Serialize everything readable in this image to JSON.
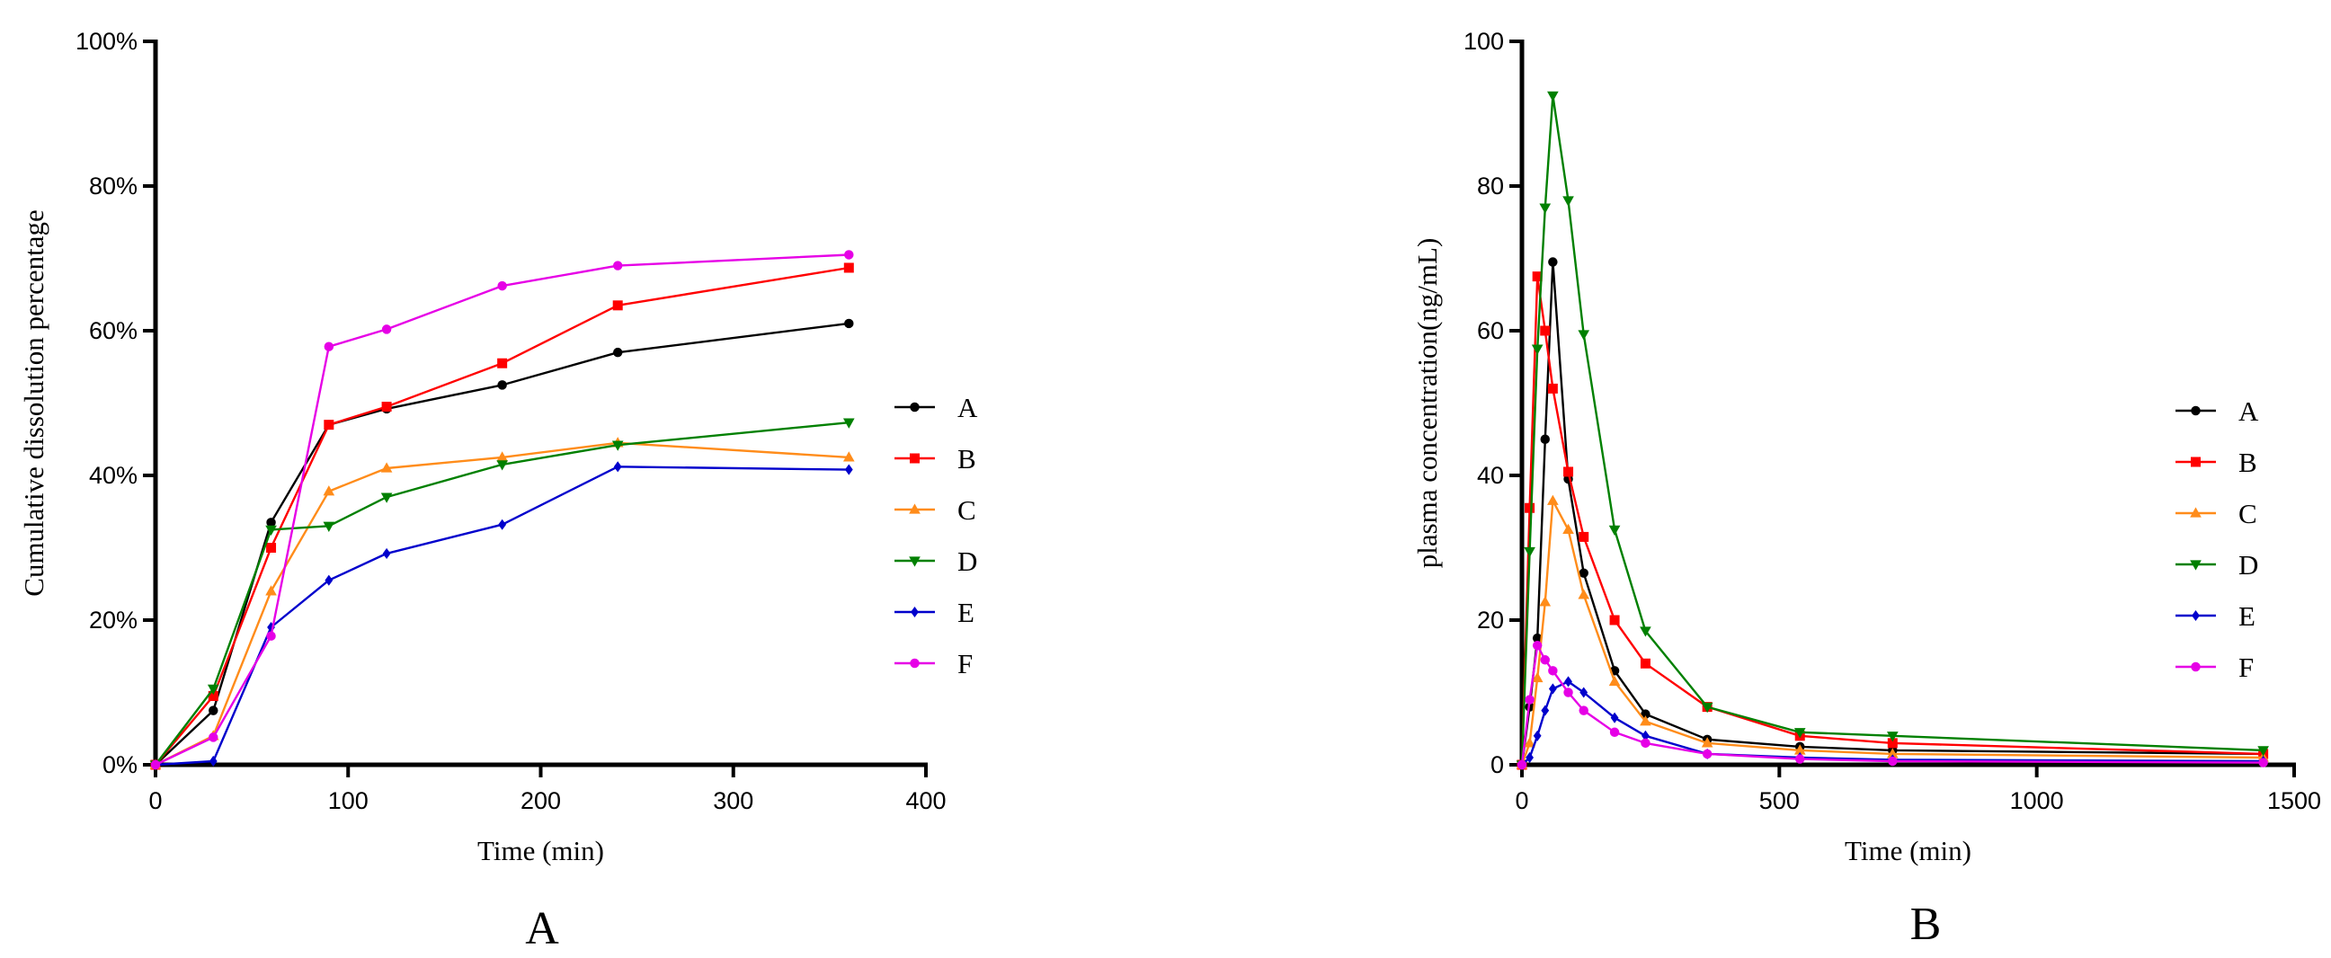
{
  "chart_data": [
    {
      "type": "line",
      "panel_label": "A",
      "xlabel": "Time (min)",
      "ylabel": "Cumulative dissolution percentage",
      "xlim": [
        0,
        400
      ],
      "ylim": [
        0,
        100
      ],
      "xticks": [
        0,
        100,
        200,
        300,
        400
      ],
      "yticks": [
        0,
        20,
        40,
        60,
        80,
        100
      ],
      "ytick_labels": [
        "0%",
        "20%",
        "40%",
        "60%",
        "80%",
        "100%"
      ],
      "legend_position": "right",
      "x": [
        0,
        30,
        60,
        90,
        120,
        180,
        240,
        360
      ],
      "series": [
        {
          "name": "A",
          "color": "#000000",
          "marker": "circle",
          "values": [
            0,
            7.5,
            33.5,
            47,
            49.2,
            52.5,
            57,
            61
          ]
        },
        {
          "name": "B",
          "color": "#ff0000",
          "marker": "square",
          "values": [
            0,
            9.5,
            30,
            47,
            49.5,
            55.5,
            63.5,
            68.7
          ]
        },
        {
          "name": "C",
          "color": "#ff8c1a",
          "marker": "triangle-up",
          "values": [
            0,
            4,
            24,
            37.8,
            41,
            42.5,
            44.5,
            42.5
          ]
        },
        {
          "name": "D",
          "color": "#008000",
          "marker": "triangle-down",
          "values": [
            0,
            10.5,
            32.5,
            33,
            37,
            41.5,
            44.2,
            47.3
          ]
        },
        {
          "name": "E",
          "color": "#0000cc",
          "marker": "diamond",
          "values": [
            0,
            0.5,
            19,
            25.5,
            29.2,
            33.2,
            41.2,
            40.8
          ]
        },
        {
          "name": "F",
          "color": "#e600e6",
          "marker": "circle",
          "values": [
            0,
            3.8,
            17.8,
            57.8,
            60.2,
            66.2,
            69,
            70.5
          ]
        }
      ]
    },
    {
      "type": "line",
      "panel_label": "B",
      "xlabel": "Time (min)",
      "ylabel": "plasma concentration(ng/mL)",
      "xlim": [
        0,
        1500
      ],
      "ylim": [
        0,
        100
      ],
      "xticks": [
        0,
        500,
        1000,
        1500
      ],
      "yticks": [
        0,
        20,
        40,
        60,
        80,
        100
      ],
      "ytick_labels": [
        "0",
        "20",
        "40",
        "60",
        "80",
        "100"
      ],
      "legend_position": "right",
      "series": [
        {
          "name": "A",
          "color": "#000000",
          "marker": "circle",
          "x": [
            0,
            15,
            30,
            45,
            60,
            90,
            120,
            180,
            240,
            360,
            540,
            720,
            1440
          ],
          "values": [
            0,
            8,
            17.5,
            45,
            69.5,
            39.5,
            26.5,
            13,
            7,
            3.5,
            2.5,
            2,
            1.5
          ]
        },
        {
          "name": "B",
          "color": "#ff0000",
          "marker": "square",
          "x": [
            0,
            15,
            30,
            45,
            60,
            90,
            120,
            180,
            240,
            360,
            540,
            720,
            1440
          ],
          "values": [
            0,
            35.5,
            67.5,
            60,
            52,
            40.5,
            31.5,
            20,
            14,
            8,
            4,
            3,
            1.5
          ]
        },
        {
          "name": "C",
          "color": "#ff8c1a",
          "marker": "triangle-up",
          "x": [
            0,
            15,
            30,
            45,
            60,
            90,
            120,
            180,
            240,
            360,
            540,
            720,
            1440
          ],
          "values": [
            0,
            3,
            12,
            22.5,
            36.5,
            32.5,
            23.5,
            11.5,
            6,
            3,
            2,
            1.5,
            1
          ]
        },
        {
          "name": "D",
          "color": "#008000",
          "marker": "triangle-down",
          "x": [
            0,
            15,
            30,
            45,
            60,
            90,
            120,
            180,
            240,
            360,
            540,
            720,
            1440
          ],
          "values": [
            0,
            29.5,
            57.5,
            77,
            92.5,
            78,
            59.5,
            32.5,
            18.5,
            8,
            4.5,
            4,
            2
          ]
        },
        {
          "name": "E",
          "color": "#0000cc",
          "marker": "diamond",
          "x": [
            0,
            15,
            30,
            45,
            60,
            90,
            120,
            180,
            240,
            360,
            540,
            720,
            1440
          ],
          "values": [
            0,
            1,
            4,
            7.5,
            10.5,
            11.5,
            10,
            6.5,
            4,
            1.5,
            1,
            0.7,
            0.5
          ]
        },
        {
          "name": "F",
          "color": "#e600e6",
          "marker": "circle",
          "x": [
            0,
            15,
            30,
            45,
            60,
            90,
            120,
            180,
            240,
            360,
            540,
            720,
            1440
          ],
          "values": [
            0,
            9,
            16.5,
            14.5,
            13,
            10,
            7.5,
            4.5,
            3,
            1.5,
            0.8,
            0.5,
            0.3
          ]
        }
      ]
    }
  ]
}
